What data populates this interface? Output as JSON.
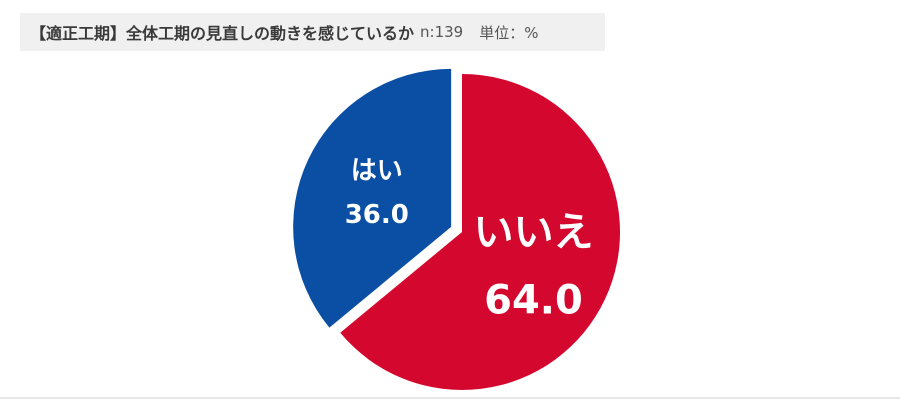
{
  "header": {
    "title": "【適正工期】全体工期の見直しの動きを感じているか",
    "sample": "n:139",
    "unit": "単位：%"
  },
  "chart_data": {
    "type": "pie",
    "title": "【適正工期】全体工期の見直しの動きを感じているか",
    "unit": "%",
    "slices": [
      {
        "label": "はい",
        "value": 36.0,
        "value_label": "36.0",
        "color": "#0a4fa3"
      },
      {
        "label": "いいえ",
        "value": 64.0,
        "value_label": "64.0",
        "color": "#d4082e"
      }
    ],
    "start_angle_deg": 0,
    "direction": "counterclockwise",
    "exploded": "はい"
  }
}
